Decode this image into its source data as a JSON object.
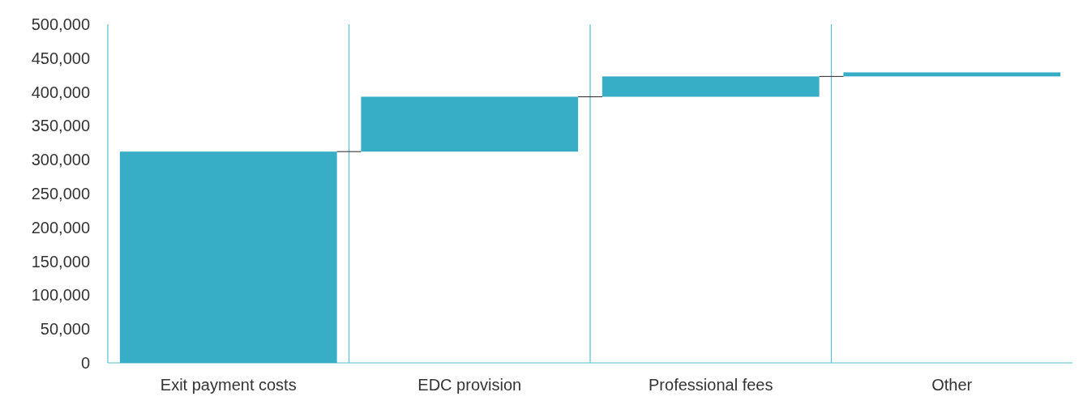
{
  "chart_data": {
    "type": "bar",
    "categories": [
      "Exit payment costs",
      "EDC provision",
      "Professional fees",
      "Other"
    ],
    "values": [
      312000,
      81000,
      30000,
      6000
    ],
    "base": [
      0,
      312000,
      393000,
      423000
    ],
    "color": "#37aec6",
    "ylim": [
      0,
      500000
    ],
    "yticks": [
      {
        "value": 0,
        "label": "0"
      },
      {
        "value": 50000,
        "label": "50,000"
      },
      {
        "value": 100000,
        "label": "100,000"
      },
      {
        "value": 150000,
        "label": "150,000"
      },
      {
        "value": 200000,
        "label": "200,000"
      },
      {
        "value": 250000,
        "label": "250,000"
      },
      {
        "value": 300000,
        "label": "300,000"
      },
      {
        "value": 350000,
        "label": "350,000"
      },
      {
        "value": 400000,
        "label": "400,000"
      },
      {
        "value": 450000,
        "label": "450,000"
      },
      {
        "value": 500000,
        "label": "500,000"
      }
    ]
  }
}
